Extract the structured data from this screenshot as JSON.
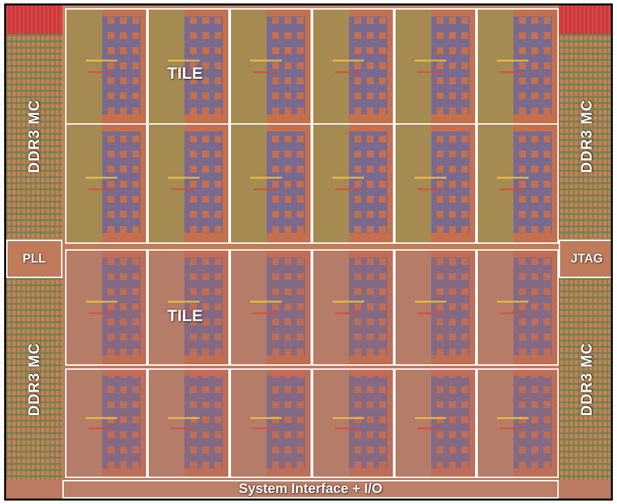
{
  "labels": {
    "mc_top_left": "DDR3 MC",
    "mc_top_right": "DDR3 MC",
    "mc_bottom_left": "DDR3 MC",
    "mc_bottom_right": "DDR3 MC",
    "pll": "PLL",
    "jtag": "JTAG",
    "tile_top": "TILE",
    "tile_bottom": "TILE",
    "system_interface": "System Interface + I/O"
  },
  "tile_grid": {
    "columns": 6,
    "rows": 4
  },
  "colors": {
    "tile_border": "#ffffff",
    "die_border": "#111111",
    "logic_blue": "#6d6a99",
    "pad_red": "#d94545"
  }
}
